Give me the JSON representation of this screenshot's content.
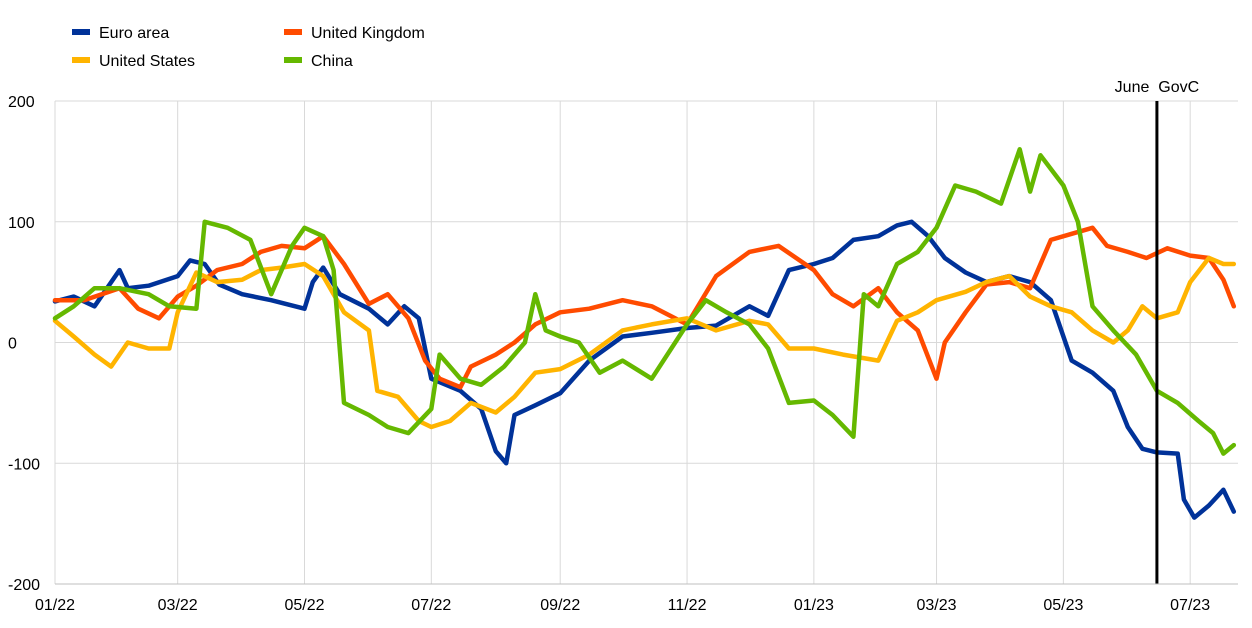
{
  "chart_data": {
    "type": "line",
    "title": "",
    "xlabel": "",
    "ylabel": "",
    "ylim": [
      -200,
      200
    ],
    "y_ticks": [
      200,
      100,
      0,
      -100,
      -200
    ],
    "y_tick_labels": [
      "200",
      "100",
      "0",
      "-100",
      "-200"
    ],
    "x_ticks": [
      "2022-01-01",
      "2022-03-01",
      "2022-05-01",
      "2022-07-01",
      "2022-09-01",
      "2022-11-01",
      "2023-01-01",
      "2023-03-01",
      "2023-05-01",
      "2023-07-01"
    ],
    "x_tick_labels": [
      "01/22",
      "03/22",
      "05/22",
      "07/22",
      "09/22",
      "11/22",
      "01/23",
      "03/23",
      "05/23",
      "07/23"
    ],
    "xlim": [
      "2022-01-01",
      "2023-07-24"
    ],
    "grid": "both",
    "legend_position": "top-left",
    "annotation": {
      "label": "June  GovC",
      "x": "2023-06-15"
    },
    "series": [
      {
        "name": "Euro area",
        "color": "#003299",
        "points": [
          [
            "2022-01-01",
            34
          ],
          [
            "2022-01-10",
            38
          ],
          [
            "2022-01-20",
            30
          ],
          [
            "2022-02-01",
            60
          ],
          [
            "2022-02-05",
            45
          ],
          [
            "2022-02-15",
            47
          ],
          [
            "2022-03-01",
            55
          ],
          [
            "2022-03-07",
            68
          ],
          [
            "2022-03-14",
            65
          ],
          [
            "2022-03-21",
            48
          ],
          [
            "2022-04-01",
            40
          ],
          [
            "2022-04-15",
            35
          ],
          [
            "2022-05-01",
            28
          ],
          [
            "2022-05-05",
            50
          ],
          [
            "2022-05-10",
            62
          ],
          [
            "2022-05-18",
            40
          ],
          [
            "2022-06-01",
            28
          ],
          [
            "2022-06-10",
            15
          ],
          [
            "2022-06-18",
            30
          ],
          [
            "2022-06-25",
            20
          ],
          [
            "2022-07-01",
            -30
          ],
          [
            "2022-07-15",
            -40
          ],
          [
            "2022-07-25",
            -55
          ],
          [
            "2022-08-01",
            -90
          ],
          [
            "2022-08-06",
            -100
          ],
          [
            "2022-08-10",
            -60
          ],
          [
            "2022-08-20",
            -52
          ],
          [
            "2022-09-01",
            -42
          ],
          [
            "2022-09-15",
            -15
          ],
          [
            "2022-10-01",
            5
          ],
          [
            "2022-10-15",
            8
          ],
          [
            "2022-11-01",
            12
          ],
          [
            "2022-11-15",
            14
          ],
          [
            "2022-12-01",
            30
          ],
          [
            "2022-12-10",
            22
          ],
          [
            "2022-12-20",
            60
          ],
          [
            "2023-01-01",
            65
          ],
          [
            "2023-01-10",
            70
          ],
          [
            "2023-01-20",
            85
          ],
          [
            "2023-02-01",
            88
          ],
          [
            "2023-02-10",
            97
          ],
          [
            "2023-02-17",
            100
          ],
          [
            "2023-02-25",
            88
          ],
          [
            "2023-03-05",
            70
          ],
          [
            "2023-03-15",
            58
          ],
          [
            "2023-03-25",
            50
          ],
          [
            "2023-04-05",
            55
          ],
          [
            "2023-04-15",
            50
          ],
          [
            "2023-04-25",
            35
          ],
          [
            "2023-05-01",
            5
          ],
          [
            "2023-05-05",
            -15
          ],
          [
            "2023-05-15",
            -25
          ],
          [
            "2023-05-25",
            -40
          ],
          [
            "2023-06-01",
            -70
          ],
          [
            "2023-06-08",
            -88
          ],
          [
            "2023-06-15",
            -91
          ],
          [
            "2023-06-25",
            -92
          ],
          [
            "2023-06-28",
            -130
          ],
          [
            "2023-07-03",
            -145
          ],
          [
            "2023-07-10",
            -135
          ],
          [
            "2023-07-17",
            -122
          ],
          [
            "2023-07-22",
            -140
          ]
        ]
      },
      {
        "name": "United Kingdom",
        "color": "#ff4b00",
        "points": [
          [
            "2022-01-01",
            35
          ],
          [
            "2022-01-15",
            35
          ],
          [
            "2022-02-01",
            45
          ],
          [
            "2022-02-10",
            28
          ],
          [
            "2022-02-20",
            20
          ],
          [
            "2022-03-01",
            38
          ],
          [
            "2022-03-10",
            47
          ],
          [
            "2022-03-20",
            60
          ],
          [
            "2022-04-01",
            65
          ],
          [
            "2022-04-10",
            75
          ],
          [
            "2022-04-20",
            80
          ],
          [
            "2022-05-01",
            78
          ],
          [
            "2022-05-10",
            88
          ],
          [
            "2022-05-20",
            65
          ],
          [
            "2022-06-01",
            32
          ],
          [
            "2022-06-10",
            40
          ],
          [
            "2022-06-20",
            20
          ],
          [
            "2022-06-28",
            -15
          ],
          [
            "2022-07-05",
            -30
          ],
          [
            "2022-07-15",
            -37
          ],
          [
            "2022-07-20",
            -20
          ],
          [
            "2022-08-01",
            -10
          ],
          [
            "2022-08-10",
            0
          ],
          [
            "2022-08-20",
            15
          ],
          [
            "2022-09-01",
            25
          ],
          [
            "2022-09-15",
            28
          ],
          [
            "2022-10-01",
            35
          ],
          [
            "2022-10-15",
            30
          ],
          [
            "2022-11-01",
            15
          ],
          [
            "2022-11-15",
            55
          ],
          [
            "2022-12-01",
            75
          ],
          [
            "2022-12-15",
            80
          ],
          [
            "2023-01-01",
            60
          ],
          [
            "2023-01-10",
            40
          ],
          [
            "2023-01-20",
            30
          ],
          [
            "2023-02-01",
            45
          ],
          [
            "2023-02-10",
            25
          ],
          [
            "2023-02-20",
            10
          ],
          [
            "2023-03-01",
            -30
          ],
          [
            "2023-03-05",
            0
          ],
          [
            "2023-03-15",
            25
          ],
          [
            "2023-03-25",
            48
          ],
          [
            "2023-04-05",
            50
          ],
          [
            "2023-04-15",
            45
          ],
          [
            "2023-04-25",
            85
          ],
          [
            "2023-05-05",
            90
          ],
          [
            "2023-05-15",
            95
          ],
          [
            "2023-05-22",
            80
          ],
          [
            "2023-06-01",
            75
          ],
          [
            "2023-06-10",
            70
          ],
          [
            "2023-06-20",
            78
          ],
          [
            "2023-07-01",
            72
          ],
          [
            "2023-07-10",
            70
          ],
          [
            "2023-07-17",
            52
          ],
          [
            "2023-07-22",
            30
          ]
        ]
      },
      {
        "name": "United States",
        "color": "#ffb400",
        "points": [
          [
            "2022-01-01",
            18
          ],
          [
            "2022-01-10",
            5
          ],
          [
            "2022-01-20",
            -10
          ],
          [
            "2022-01-28",
            -20
          ],
          [
            "2022-02-05",
            0
          ],
          [
            "2022-02-15",
            -5
          ],
          [
            "2022-02-25",
            -5
          ],
          [
            "2022-03-01",
            25
          ],
          [
            "2022-03-10",
            58
          ],
          [
            "2022-03-20",
            50
          ],
          [
            "2022-04-01",
            52
          ],
          [
            "2022-04-10",
            60
          ],
          [
            "2022-04-20",
            62
          ],
          [
            "2022-05-01",
            65
          ],
          [
            "2022-05-10",
            55
          ],
          [
            "2022-05-20",
            25
          ],
          [
            "2022-06-01",
            10
          ],
          [
            "2022-06-05",
            -40
          ],
          [
            "2022-06-15",
            -45
          ],
          [
            "2022-06-25",
            -65
          ],
          [
            "2022-07-01",
            -70
          ],
          [
            "2022-07-10",
            -65
          ],
          [
            "2022-07-20",
            -50
          ],
          [
            "2022-08-01",
            -58
          ],
          [
            "2022-08-10",
            -45
          ],
          [
            "2022-08-20",
            -25
          ],
          [
            "2022-09-01",
            -22
          ],
          [
            "2022-09-15",
            -10
          ],
          [
            "2022-10-01",
            10
          ],
          [
            "2022-10-15",
            15
          ],
          [
            "2022-11-01",
            20
          ],
          [
            "2022-11-15",
            10
          ],
          [
            "2022-12-01",
            18
          ],
          [
            "2022-12-10",
            15
          ],
          [
            "2022-12-20",
            -5
          ],
          [
            "2023-01-01",
            -5
          ],
          [
            "2023-01-15",
            -10
          ],
          [
            "2023-02-01",
            -15
          ],
          [
            "2023-02-10",
            18
          ],
          [
            "2023-02-20",
            25
          ],
          [
            "2023-03-01",
            35
          ],
          [
            "2023-03-15",
            42
          ],
          [
            "2023-03-25",
            50
          ],
          [
            "2023-04-05",
            55
          ],
          [
            "2023-04-15",
            38
          ],
          [
            "2023-04-25",
            30
          ],
          [
            "2023-05-05",
            25
          ],
          [
            "2023-05-15",
            10
          ],
          [
            "2023-05-25",
            0
          ],
          [
            "2023-06-01",
            10
          ],
          [
            "2023-06-08",
            30
          ],
          [
            "2023-06-15",
            20
          ],
          [
            "2023-06-25",
            25
          ],
          [
            "2023-07-01",
            50
          ],
          [
            "2023-07-10",
            70
          ],
          [
            "2023-07-17",
            65
          ],
          [
            "2023-07-22",
            65
          ]
        ]
      },
      {
        "name": "China",
        "color": "#65b800",
        "points": [
          [
            "2022-01-01",
            20
          ],
          [
            "2022-01-10",
            30
          ],
          [
            "2022-01-20",
            45
          ],
          [
            "2022-02-01",
            45
          ],
          [
            "2022-02-15",
            40
          ],
          [
            "2022-02-25",
            30
          ],
          [
            "2022-03-10",
            28
          ],
          [
            "2022-03-14",
            100
          ],
          [
            "2022-03-25",
            95
          ],
          [
            "2022-04-05",
            85
          ],
          [
            "2022-04-15",
            40
          ],
          [
            "2022-04-25",
            80
          ],
          [
            "2022-05-01",
            95
          ],
          [
            "2022-05-10",
            88
          ],
          [
            "2022-05-15",
            60
          ],
          [
            "2022-05-20",
            -50
          ],
          [
            "2022-06-01",
            -60
          ],
          [
            "2022-06-10",
            -70
          ],
          [
            "2022-06-20",
            -75
          ],
          [
            "2022-07-01",
            -55
          ],
          [
            "2022-07-05",
            -10
          ],
          [
            "2022-07-15",
            -30
          ],
          [
            "2022-07-25",
            -35
          ],
          [
            "2022-08-05",
            -20
          ],
          [
            "2022-08-15",
            0
          ],
          [
            "2022-08-20",
            40
          ],
          [
            "2022-08-25",
            10
          ],
          [
            "2022-09-01",
            5
          ],
          [
            "2022-09-10",
            0
          ],
          [
            "2022-09-20",
            -25
          ],
          [
            "2022-10-01",
            -15
          ],
          [
            "2022-10-15",
            -30
          ],
          [
            "2022-11-01",
            15
          ],
          [
            "2022-11-10",
            35
          ],
          [
            "2022-11-20",
            25
          ],
          [
            "2022-12-01",
            15
          ],
          [
            "2022-12-10",
            -5
          ],
          [
            "2022-12-20",
            -50
          ],
          [
            "2023-01-01",
            -48
          ],
          [
            "2023-01-10",
            -60
          ],
          [
            "2023-01-20",
            -78
          ],
          [
            "2023-01-25",
            40
          ],
          [
            "2023-02-01",
            30
          ],
          [
            "2023-02-10",
            65
          ],
          [
            "2023-02-20",
            75
          ],
          [
            "2023-03-01",
            95
          ],
          [
            "2023-03-10",
            130
          ],
          [
            "2023-03-20",
            125
          ],
          [
            "2023-04-01",
            115
          ],
          [
            "2023-04-10",
            160
          ],
          [
            "2023-04-15",
            125
          ],
          [
            "2023-04-20",
            155
          ],
          [
            "2023-05-01",
            130
          ],
          [
            "2023-05-08",
            100
          ],
          [
            "2023-05-15",
            30
          ],
          [
            "2023-05-25",
            10
          ],
          [
            "2023-06-05",
            -10
          ],
          [
            "2023-06-15",
            -40
          ],
          [
            "2023-06-25",
            -50
          ],
          [
            "2023-07-05",
            -65
          ],
          [
            "2023-07-12",
            -75
          ],
          [
            "2023-07-17",
            -92
          ],
          [
            "2023-07-22",
            -85
          ]
        ]
      }
    ]
  }
}
